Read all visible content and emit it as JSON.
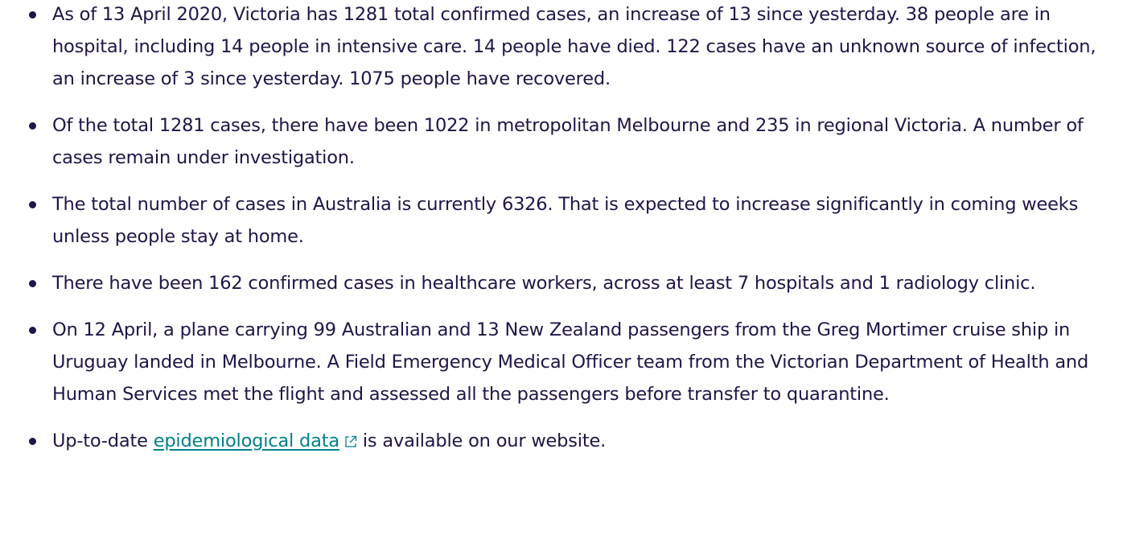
{
  "list": {
    "items": [
      "As of 13 April 2020, Victoria has 1281 total confirmed cases, an increase of 13 since yesterday. 38 people are in hospital, including 14 people in intensive care. 14 people have died. 122 cases have an unknown source of infection, an increase of 3 since yesterday. 1075 people have recovered.",
      "Of the total 1281 cases, there have been 1022 in metropolitan Melbourne and 235 in regional Victoria. A number of cases remain under investigation.",
      "The total number of cases in Australia is currently 6326. That is expected to increase significantly in coming weeks unless people stay at home.",
      "There have been 162 confirmed cases in healthcare workers, across at least 7 hospitals and 1 radiology clinic.",
      "On 12 April, a plane carrying 99 Australian and 13 New Zealand passengers from the Greg Mortimer cruise ship in Uruguay landed in Melbourne. A Field Emergency Medical Officer team from the Victorian Department of Health and Human Services met the flight and assessed all the passengers before transfer to quarantine."
    ],
    "link_item": {
      "before": "Up-to-date",
      "link": "epidemiological data",
      "after": "is available on our website."
    }
  }
}
